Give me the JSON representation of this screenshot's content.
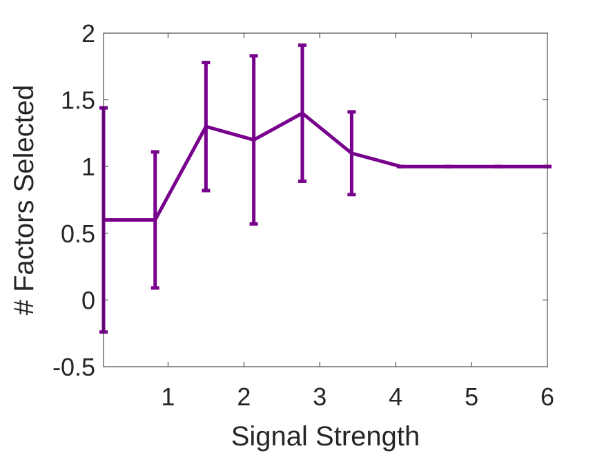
{
  "chart_data": {
    "type": "line",
    "title": "",
    "xlabel": "Signal Strength",
    "ylabel": "# Factors Selected",
    "xlim": [
      0.15,
      6
    ],
    "ylim": [
      -0.5,
      2
    ],
    "xticks": [
      1,
      2,
      3,
      4,
      5,
      6
    ],
    "yticks": [
      -0.5,
      0,
      0.5,
      1,
      1.5,
      2
    ],
    "xtick_labels": [
      "1",
      "2",
      "3",
      "4",
      "5",
      "6"
    ],
    "ytick_labels": [
      "-0.5",
      "0",
      "0.5",
      "1",
      "1.5",
      "2"
    ],
    "grid": false,
    "box": true,
    "color": "#77008C",
    "series": [
      {
        "x": [
          0.15,
          0.83,
          1.5,
          2.13,
          2.77,
          3.42,
          4.07,
          4.7,
          5.35,
          6.0
        ],
        "y": [
          0.6,
          0.6,
          1.3,
          1.2,
          1.4,
          1.1,
          1.0,
          1.0,
          1.0,
          1.0
        ],
        "err_low": [
          -0.24,
          0.09,
          0.82,
          0.57,
          0.89,
          0.79,
          1.0,
          1.0,
          1.0,
          1.0
        ],
        "err_high": [
          1.44,
          1.11,
          1.78,
          1.83,
          1.91,
          1.41,
          1.0,
          1.0,
          1.0,
          1.0
        ]
      }
    ]
  }
}
